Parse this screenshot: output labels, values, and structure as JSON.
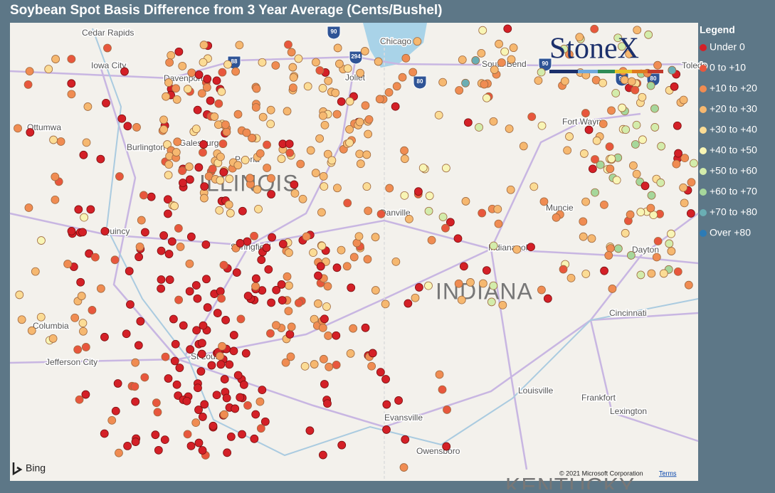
{
  "header": {
    "title": "Soybean Spot Basis Difference from 3 Year Average (Cents/Bushel)"
  },
  "legend": {
    "title": "Legend",
    "items": [
      {
        "label": "Under 0",
        "color": "#d42027"
      },
      {
        "label": "0 to +10",
        "color": "#e8573d"
      },
      {
        "label": "+10 to +20",
        "color": "#f08c52"
      },
      {
        "label": "+20 to +30",
        "color": "#f6b870"
      },
      {
        "label": "+30 to +40",
        "color": "#fbdc95"
      },
      {
        "label": "+40 to +50",
        "color": "#f8f5b5"
      },
      {
        "label": "+50 to +60",
        "color": "#d3ecab"
      },
      {
        "label": "+60 to +70",
        "color": "#a6d79b"
      },
      {
        "label": "+70 to +80",
        "color": "#6aaeb4"
      },
      {
        "label": "Over +80",
        "color": "#2c7bb6"
      }
    ]
  },
  "map": {
    "cities": [
      "Cedar Rapids",
      "Iowa City",
      "Davenport",
      "Ottumwa",
      "Burlington",
      "Galesburg",
      "Peoria",
      "Quincy",
      "Springfield",
      "Columbia",
      "Jefferson City",
      "St Louis",
      "Chicago",
      "Joliet",
      "South Bend",
      "Danville",
      "Indianapolis",
      "Muncie",
      "Fort Wayne",
      "Dayton",
      "Cincinnati",
      "Louisville",
      "Frankfort",
      "Lexington",
      "Evansville",
      "Owensboro",
      "Toledo"
    ],
    "states": [
      "ILLINOIS",
      "INDIANA",
      "KENTUCKY"
    ],
    "shields": [
      "90",
      "294",
      "88",
      "80",
      "90",
      "90",
      "80"
    ],
    "logo": "StoneX",
    "attribution": "Bing",
    "copyright": "© 2021 Microsoft Corporation",
    "terms": "Terms"
  }
}
